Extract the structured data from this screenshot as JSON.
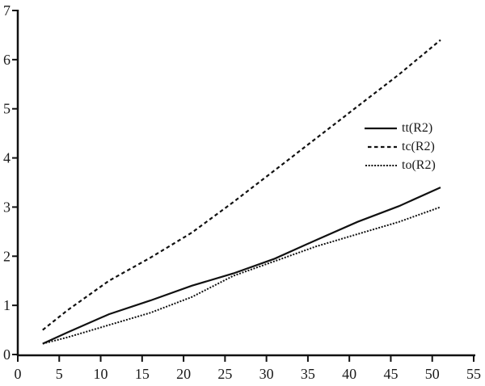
{
  "chart_data": {
    "type": "line",
    "title": "",
    "xlabel": "",
    "ylabel": "",
    "xlim": [
      0,
      55
    ],
    "ylim": [
      0,
      7
    ],
    "x_ticks": [
      0,
      5,
      10,
      15,
      20,
      25,
      30,
      35,
      40,
      45,
      50,
      55
    ],
    "y_ticks": [
      0,
      1,
      2,
      3,
      4,
      5,
      6,
      7
    ],
    "grid": false,
    "legend_position": "right-middle",
    "axis_color": "#111111",
    "background_color": "#ffffff",
    "series": [
      {
        "name": "tt(R2)",
        "style": "solid",
        "color": "#111111",
        "x": [
          3,
          6,
          11,
          16,
          21,
          26,
          31,
          36,
          41,
          46,
          51
        ],
        "y": [
          0.22,
          0.45,
          0.82,
          1.1,
          1.4,
          1.65,
          1.95,
          2.33,
          2.7,
          3.02,
          3.4
        ]
      },
      {
        "name": "tc(R2)",
        "style": "dashed",
        "color": "#111111",
        "x": [
          3,
          6,
          11,
          16,
          21,
          26,
          31,
          36,
          41,
          46,
          51
        ],
        "y": [
          0.5,
          0.9,
          1.5,
          1.97,
          2.48,
          3.1,
          3.75,
          4.4,
          5.05,
          5.7,
          6.4
        ]
      },
      {
        "name": "to(R2)",
        "style": "dotted",
        "color": "#111111",
        "x": [
          3,
          6,
          11,
          16,
          21,
          26,
          31,
          36,
          41,
          46,
          51
        ],
        "y": [
          0.22,
          0.35,
          0.6,
          0.85,
          1.17,
          1.6,
          1.9,
          2.2,
          2.45,
          2.7,
          3.0
        ]
      }
    ]
  }
}
